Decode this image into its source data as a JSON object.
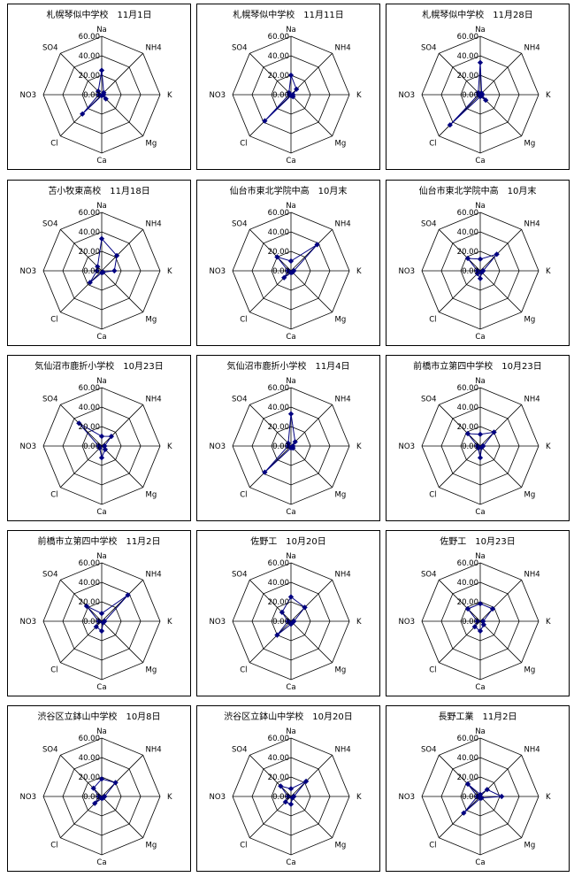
{
  "chart_data": [
    {
      "type": "radar",
      "title": "札幌琴似中学校　11月1日",
      "axes": [
        "Na",
        "NH4",
        "K",
        "Mg",
        "Ca",
        "Cl",
        "NO3",
        "SO4"
      ],
      "ticks": [
        "0.00",
        "20.00",
        "40.00",
        "60.00"
      ],
      "rmax": 60,
      "values": [
        25,
        3,
        2,
        6,
        1,
        28,
        3,
        5
      ]
    },
    {
      "type": "radar",
      "title": "札幌琴似中学校　11月11日",
      "axes": [
        "Na",
        "NH4",
        "K",
        "Mg",
        "Ca",
        "Cl",
        "NO3",
        "SO4"
      ],
      "ticks": [
        "0.00",
        "20.00",
        "40.00",
        "60.00"
      ],
      "rmax": 60,
      "values": [
        20,
        8,
        2,
        3,
        1,
        38,
        2,
        3
      ]
    },
    {
      "type": "radar",
      "title": "札幌琴似中学校　11月28日",
      "axes": [
        "Na",
        "NH4",
        "K",
        "Mg",
        "Ca",
        "Cl",
        "NO3",
        "SO4"
      ],
      "ticks": [
        "0.00",
        "20.00",
        "40.00",
        "60.00"
      ],
      "rmax": 60,
      "values": [
        33,
        2,
        2,
        8,
        2,
        44,
        2,
        3
      ]
    },
    {
      "type": "radar",
      "title": "苫小牧東高校　11月18日",
      "axes": [
        "Na",
        "NH4",
        "K",
        "Mg",
        "Ca",
        "Cl",
        "NO3",
        "SO4"
      ],
      "ticks": [
        "0.00",
        "20.00",
        "40.00",
        "60.00"
      ],
      "rmax": 60,
      "values": [
        33,
        22,
        13,
        2,
        2,
        17,
        5,
        6
      ]
    },
    {
      "type": "radar",
      "title": "仙台市東北学院中高　10月末",
      "axes": [
        "Na",
        "NH4",
        "K",
        "Mg",
        "Ca",
        "Cl",
        "NO3",
        "SO4"
      ],
      "ticks": [
        "0.00",
        "20.00",
        "40.00",
        "60.00"
      ],
      "rmax": 60,
      "values": [
        10,
        38,
        3,
        2,
        2,
        10,
        3,
        20
      ]
    },
    {
      "type": "radar",
      "title": "仙台市東北学院中高　10月末",
      "axes": [
        "Na",
        "NH4",
        "K",
        "Mg",
        "Ca",
        "Cl",
        "NO3",
        "SO4"
      ],
      "ticks": [
        "0.00",
        "20.00",
        "40.00",
        "60.00"
      ],
      "rmax": 60,
      "values": [
        12,
        24,
        3,
        2,
        8,
        4,
        3,
        18
      ]
    },
    {
      "type": "radar",
      "title": "気仙沼市鹿折小学校　10月23日",
      "axes": [
        "Na",
        "NH4",
        "K",
        "Mg",
        "Ca",
        "Cl",
        "NO3",
        "SO4"
      ],
      "ticks": [
        "0.00",
        "20.00",
        "40.00",
        "60.00"
      ],
      "rmax": 60,
      "values": [
        10,
        14,
        3,
        5,
        12,
        3,
        3,
        33
      ]
    },
    {
      "type": "radar",
      "title": "気仙沼市鹿折小学校　11月4日",
      "axes": [
        "Na",
        "NH4",
        "K",
        "Mg",
        "Ca",
        "Cl",
        "NO3",
        "SO4"
      ],
      "ticks": [
        "0.00",
        "20.00",
        "40.00",
        "60.00"
      ],
      "rmax": 60,
      "values": [
        33,
        6,
        2,
        3,
        2,
        38,
        3,
        4
      ]
    },
    {
      "type": "radar",
      "title": "前橋市立第四中学校　10月23日",
      "axes": [
        "Na",
        "NH4",
        "K",
        "Mg",
        "Ca",
        "Cl",
        "NO3",
        "SO4"
      ],
      "ticks": [
        "0.00",
        "20.00",
        "40.00",
        "60.00"
      ],
      "rmax": 60,
      "values": [
        12,
        20,
        3,
        2,
        12,
        3,
        3,
        18
      ]
    },
    {
      "type": "radar",
      "title": "前橋市立第四中学校　11月2日",
      "axes": [
        "Na",
        "NH4",
        "K",
        "Mg",
        "Ca",
        "Cl",
        "NO3",
        "SO4"
      ],
      "ticks": [
        "0.00",
        "20.00",
        "40.00",
        "60.00"
      ],
      "rmax": 60,
      "values": [
        8,
        38,
        3,
        2,
        10,
        8,
        3,
        22
      ]
    },
    {
      "type": "radar",
      "title": "佐野工　10月20日",
      "axes": [
        "Na",
        "NH4",
        "K",
        "Mg",
        "Ca",
        "Cl",
        "NO3",
        "SO4"
      ],
      "ticks": [
        "0.00",
        "20.00",
        "40.00",
        "60.00"
      ],
      "rmax": 60,
      "values": [
        25,
        20,
        3,
        2,
        3,
        20,
        3,
        13
      ]
    },
    {
      "type": "radar",
      "title": "佐野工　10月23日",
      "axes": [
        "Na",
        "NH4",
        "K",
        "Mg",
        "Ca",
        "Cl",
        "NO3",
        "SO4"
      ],
      "ticks": [
        "0.00",
        "20.00",
        "40.00",
        "60.00"
      ],
      "rmax": 60,
      "values": [
        18,
        18,
        3,
        5,
        10,
        8,
        3,
        18
      ]
    },
    {
      "type": "radar",
      "title": "渋谷区立鉢山中学校　10月8日",
      "axes": [
        "Na",
        "NH4",
        "K",
        "Mg",
        "Ca",
        "Cl",
        "NO3",
        "SO4"
      ],
      "ticks": [
        "0.00",
        "20.00",
        "40.00",
        "60.00"
      ],
      "rmax": 60,
      "values": [
        18,
        20,
        3,
        2,
        2,
        10,
        3,
        12
      ]
    },
    {
      "type": "radar",
      "title": "渋谷区立鉢山中学校　10月20日",
      "axes": [
        "Na",
        "NH4",
        "K",
        "Mg",
        "Ca",
        "Cl",
        "NO3",
        "SO4"
      ],
      "ticks": [
        "0.00",
        "20.00",
        "40.00",
        "60.00"
      ],
      "rmax": 60,
      "values": [
        8,
        22,
        3,
        2,
        8,
        8,
        3,
        15
      ]
    },
    {
      "type": "radar",
      "title": "長野工業　11月2日",
      "axes": [
        "Na",
        "NH4",
        "K",
        "Mg",
        "Ca",
        "Cl",
        "NO3",
        "SO4"
      ],
      "ticks": [
        "0.00",
        "20.00",
        "40.00",
        "60.00"
      ],
      "rmax": 60,
      "values": [
        2,
        10,
        22,
        2,
        2,
        24,
        3,
        18
      ]
    }
  ]
}
